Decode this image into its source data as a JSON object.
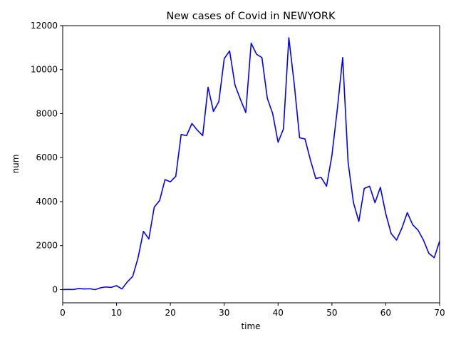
{
  "chart_data": {
    "type": "line",
    "title": "New cases of Covid in NEWYORK",
    "xlabel": "time",
    "ylabel": "num",
    "xlim": [
      0,
      70
    ],
    "ylim": [
      -600,
      12000
    ],
    "xticks": [
      0,
      10,
      20,
      30,
      40,
      50,
      60,
      70
    ],
    "yticks": [
      0,
      2000,
      4000,
      6000,
      8000,
      10000,
      12000
    ],
    "grid": false,
    "legend": "none",
    "line_color": "#0000ff",
    "series": [
      {
        "x": [
          0,
          1,
          2,
          3,
          4,
          5,
          6,
          7,
          8,
          9,
          10,
          11,
          12,
          13,
          14,
          15,
          16,
          17,
          18,
          19,
          20,
          21,
          22,
          23,
          24,
          25,
          26,
          27,
          28,
          29,
          30,
          31,
          32,
          33,
          34,
          35,
          36,
          37,
          38,
          39,
          40,
          41,
          42,
          43,
          44,
          45,
          46,
          47,
          48,
          49,
          50,
          51,
          52,
          53,
          54,
          55,
          56,
          57,
          58,
          59,
          60,
          61,
          62,
          63,
          64,
          65,
          66,
          67,
          68,
          69,
          70
        ],
        "values": [
          0,
          10,
          5,
          50,
          30,
          40,
          0,
          80,
          120,
          100,
          180,
          30,
          350,
          600,
          1450,
          2650,
          2300,
          3750,
          4050,
          5000,
          4900,
          5150,
          7050,
          7000,
          7550,
          7250,
          7000,
          9200,
          8100,
          8550,
          10500,
          10850,
          9300,
          8650,
          8050,
          11200,
          10700,
          10550,
          8700,
          8000,
          6700,
          7300,
          11450,
          9350,
          6900,
          6850,
          5900,
          5050,
          5100,
          4700,
          6100,
          8200,
          10550,
          5800,
          3950,
          3100,
          4600,
          4700,
          3950,
          4650,
          3450,
          2550,
          2250,
          2800,
          3500,
          2950,
          2700,
          2250,
          1650,
          1450,
          2200
        ]
      }
    ]
  }
}
